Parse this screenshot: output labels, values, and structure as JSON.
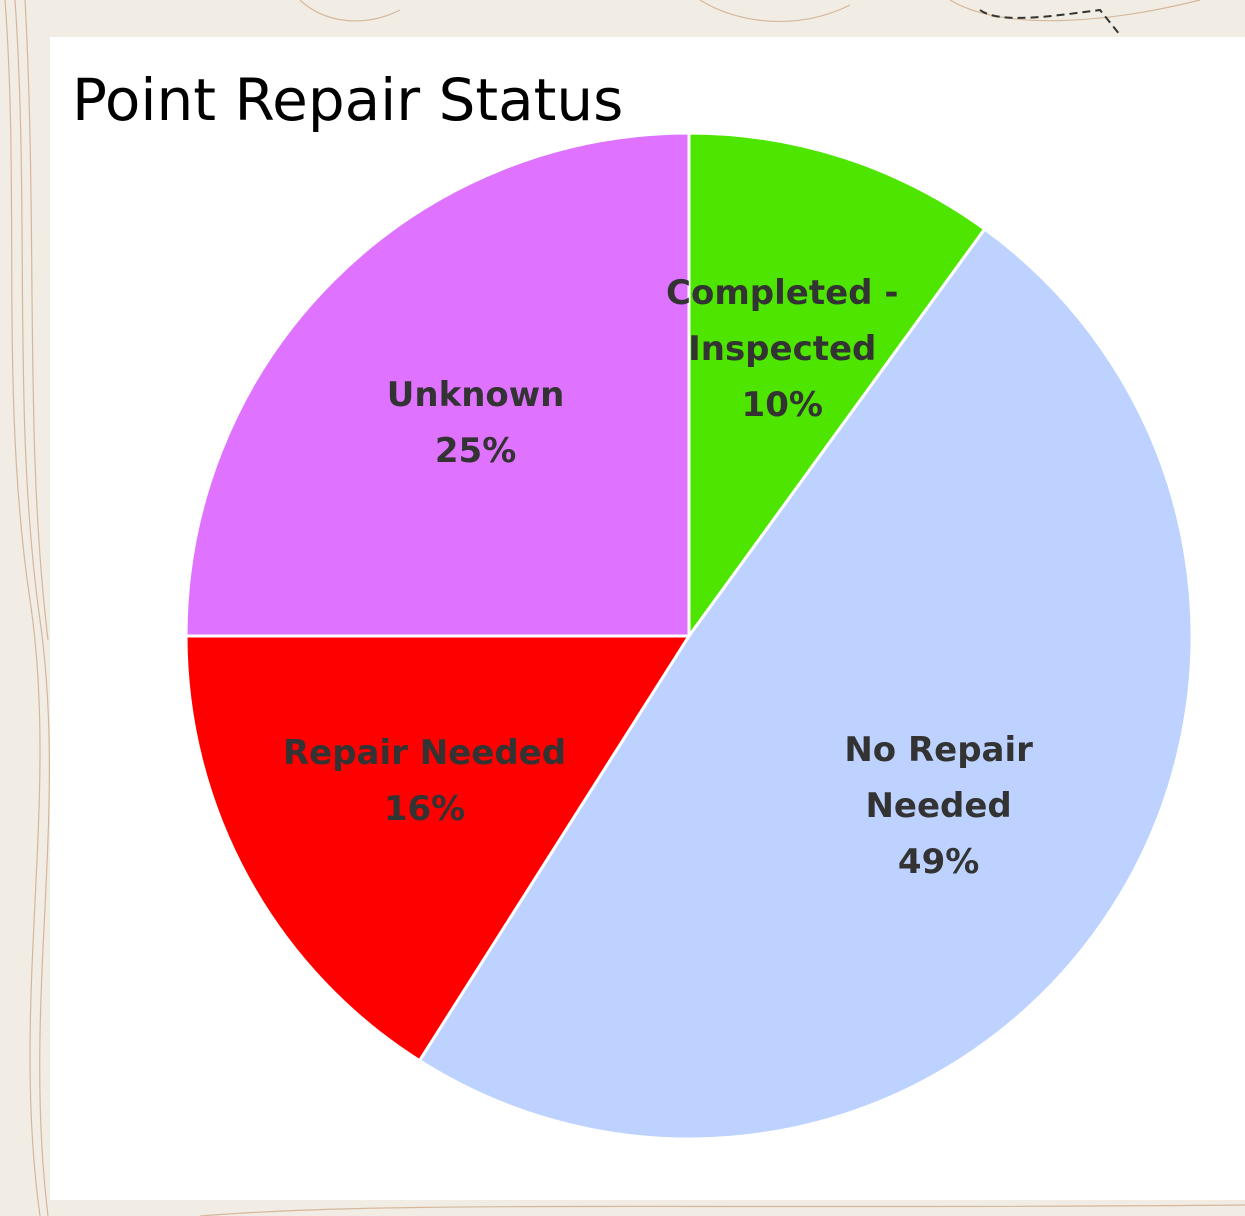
{
  "chart_data": {
    "type": "pie",
    "title": "Point Repair Status",
    "categories": [
      "Completed - Inspected",
      "No Repair Needed",
      "Repair Needed",
      "Unknown"
    ],
    "values": [
      10,
      49,
      16,
      25
    ],
    "value_labels": [
      "10%",
      "49%",
      "16%",
      "25%"
    ],
    "colors": [
      "#4ee600",
      "#bed2ff",
      "#ff0000",
      "#df73ff"
    ]
  }
}
